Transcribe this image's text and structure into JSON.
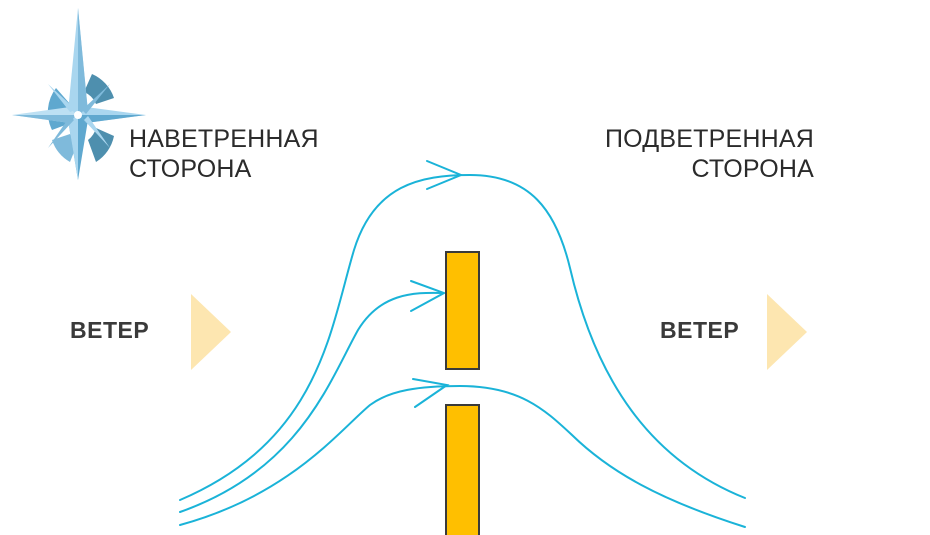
{
  "windward": {
    "line1": "НАВЕТРЕННАЯ",
    "line2": "СТОРОНА"
  },
  "leeward": {
    "line1": "ПОДВЕТРЕННАЯ",
    "line2": "СТОРОНА"
  },
  "wind_left": "ВЕТЕР",
  "wind_right": "ВЕТЕР",
  "colors": {
    "flow_line": "#1ab3d8",
    "barrier_fill": "#ffbf00",
    "barrier_stroke": "#3a3a3a",
    "wind_arrow": "#fde6b0",
    "logo_light": "#a9d6ef",
    "logo_mid": "#5fa8cf",
    "logo_dark": "#4e8fae"
  },
  "icons": {
    "logo": "compass-rose-icon",
    "wind_arrow": "triangle-right-icon"
  }
}
